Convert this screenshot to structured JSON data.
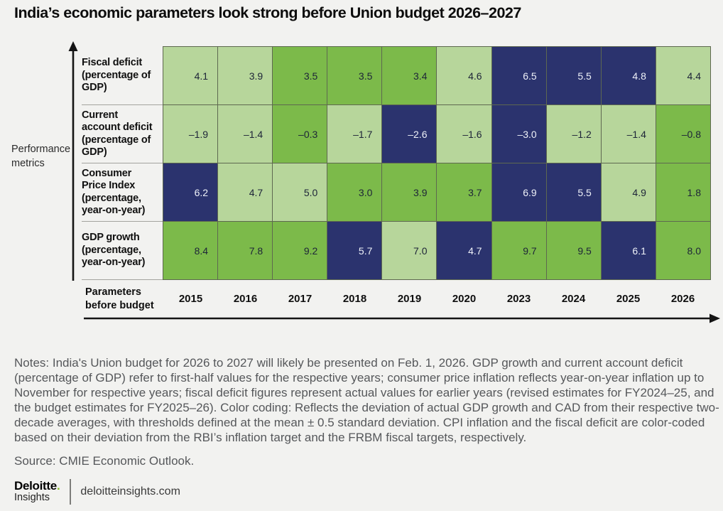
{
  "title": "India’s economic parameters look strong before Union budget 2026–2027",
  "axes": {
    "y_label": "Performance metrics",
    "x_label": "Parameters before budget"
  },
  "colors": {
    "light_green": "#b7d69b",
    "mid_green": "#7cba4a",
    "navy": "#2b336e",
    "background": "#f2f2f0",
    "brand_green": "#86bc25"
  },
  "chart_data": {
    "type": "heatmap",
    "years": [
      "2015",
      "2016",
      "2017",
      "2018",
      "2019",
      "2020",
      "2023",
      "2024",
      "2025",
      "2026"
    ],
    "color_key": [
      "light",
      "mid",
      "dark"
    ],
    "rows": [
      {
        "label": "Fiscal deficit (percentage of GDP)",
        "values": [
          4.1,
          3.9,
          3.5,
          3.5,
          3.4,
          4.6,
          6.5,
          5.5,
          4.8,
          4.4
        ],
        "display": [
          "4.1",
          "3.9",
          "3.5",
          "3.5",
          "3.4",
          "4.6",
          "6.5",
          "5.5",
          "4.8",
          "4.4"
        ],
        "colors": [
          "light",
          "light",
          "mid",
          "mid",
          "mid",
          "light",
          "dark",
          "dark",
          "dark",
          "light"
        ]
      },
      {
        "label": "Current account deficit (percentage of GDP)",
        "values": [
          -1.9,
          -1.4,
          -0.3,
          -1.7,
          -2.6,
          -1.6,
          -3.0,
          -1.2,
          -1.4,
          -0.8
        ],
        "display": [
          "–1.9",
          "–1.4",
          "–0.3",
          "–1.7",
          "–2.6",
          "–1.6",
          "–3.0",
          "–1.2",
          "–1.4",
          "–0.8"
        ],
        "colors": [
          "light",
          "light",
          "mid",
          "light",
          "dark",
          "light",
          "dark",
          "light",
          "light",
          "mid"
        ]
      },
      {
        "label": "Consumer Price Index (percentage, year-on-year)",
        "values": [
          6.2,
          4.7,
          5.0,
          3.0,
          3.9,
          3.7,
          6.9,
          5.5,
          4.9,
          1.8
        ],
        "display": [
          "6.2",
          "4.7",
          "5.0",
          "3.0",
          "3.9",
          "3.7",
          "6.9",
          "5.5",
          "4.9",
          "1.8"
        ],
        "colors": [
          "dark",
          "light",
          "light",
          "mid",
          "mid",
          "mid",
          "dark",
          "dark",
          "light",
          "mid"
        ]
      },
      {
        "label": "GDP growth (percentage, year-on-year)",
        "values": [
          8.4,
          7.8,
          9.2,
          5.7,
          7.0,
          4.7,
          9.7,
          9.5,
          6.1,
          8.0
        ],
        "display": [
          "8.4",
          "7.8",
          "9.2",
          "5.7",
          "7.0",
          "4.7",
          "9.7",
          "9.5",
          "6.1",
          "8.0"
        ],
        "colors": [
          "mid",
          "mid",
          "mid",
          "dark",
          "light",
          "dark",
          "mid",
          "mid",
          "dark",
          "mid"
        ]
      }
    ]
  },
  "notes": "Notes: India's Union budget for 2026 to 2027 will likely be presented on Feb. 1, 2026. GDP growth and current account deficit (percentage of GDP) refer to first-half values for the respective years; consumer price inflation reflects year-on-year inflation up to November for respective years; fiscal deficit figures represent actual values for earlier years (revised estimates for FY2024–25, and the budget estimates for FY2025–26). Color coding: Reflects the deviation of actual GDP growth and CAD from their respective two-decade averages, with thresholds defined at the mean ± 0.5 standard deviation. CPI inflation and the fiscal deficit are color-coded based on their deviation from the RBI’s inflation target and the FRBM fiscal targets, respectively.",
  "source": "Source: CMIE Economic Outlook.",
  "footer": {
    "brand_name": "Deloitte",
    "brand_dot": ".",
    "brand_sub": "Insights",
    "site": "deloitteinsights.com"
  }
}
